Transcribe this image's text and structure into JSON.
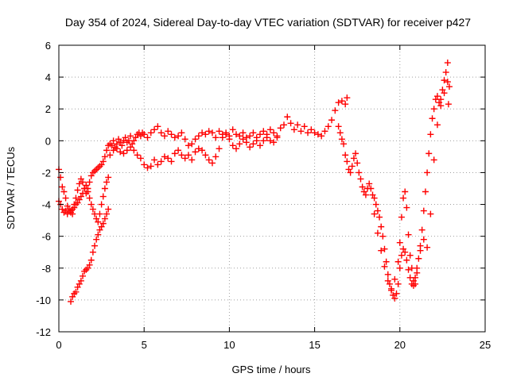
{
  "chart_data": {
    "type": "scatter",
    "title": "Day 354 of 2024, Sidereal Day-to-day VTEC variation (SDTVAR) for receiver p427",
    "xlabel": "GPS time / hours",
    "ylabel": "SDTVAR / TECUs",
    "xlim": [
      0,
      25
    ],
    "ylim": [
      -12,
      6
    ],
    "xticks": [
      0,
      5,
      10,
      15,
      20,
      25
    ],
    "yticks": [
      -12,
      -10,
      -8,
      -6,
      -4,
      -2,
      0,
      2,
      4,
      6
    ],
    "grid": true,
    "legend": "none",
    "marker": "plus",
    "color": "#ff0000",
    "series": [
      {
        "points": [
          [
            0.0,
            -1.8
          ],
          [
            0.1,
            -2.3
          ],
          [
            0.2,
            -2.9
          ],
          [
            0.3,
            -3.2
          ],
          [
            0.4,
            -3.6
          ],
          [
            0.5,
            -4.1
          ],
          [
            0.6,
            -4.4
          ],
          [
            0.7,
            -4.5
          ],
          [
            0.8,
            -4.3
          ],
          [
            0.9,
            -4.0
          ],
          [
            1.0,
            -3.6
          ],
          [
            1.1,
            -3.1
          ],
          [
            1.2,
            -2.7
          ],
          [
            1.3,
            -2.4
          ],
          [
            1.4,
            -2.6
          ],
          [
            1.5,
            -3.0
          ],
          [
            1.6,
            -3.3
          ],
          [
            1.7,
            -3.0
          ],
          [
            1.8,
            -2.6
          ],
          [
            1.9,
            -2.2
          ],
          [
            2.0,
            -2.0
          ],
          [
            2.1,
            -1.9
          ],
          [
            2.2,
            -1.8
          ],
          [
            2.3,
            -1.7
          ],
          [
            2.4,
            -1.6
          ],
          [
            2.5,
            -1.5
          ],
          [
            2.6,
            -1.3
          ],
          [
            2.7,
            -1.0
          ],
          [
            2.8,
            -0.6
          ],
          [
            2.9,
            -0.3
          ],
          [
            3.0,
            -0.2
          ],
          [
            3.1,
            -0.3
          ],
          [
            3.2,
            0.0
          ],
          [
            3.3,
            -0.4
          ],
          [
            3.4,
            -0.2
          ],
          [
            3.5,
            0.1
          ],
          [
            3.6,
            -0.1
          ],
          [
            3.7,
            -0.3
          ],
          [
            3.8,
            0.0
          ],
          [
            3.9,
            0.2
          ],
          [
            4.0,
            -0.1
          ],
          [
            4.1,
            0.0
          ],
          [
            4.2,
            0.3
          ],
          [
            4.3,
            -0.2
          ],
          [
            4.4,
            0.0
          ],
          [
            4.5,
            0.2
          ],
          [
            4.6,
            0.4
          ],
          [
            4.7,
            0.5
          ],
          [
            4.8,
            0.3
          ],
          [
            4.9,
            0.5
          ],
          [
            5.0,
            0.4
          ],
          [
            5.2,
            0.2
          ],
          [
            5.4,
            0.5
          ],
          [
            5.6,
            0.7
          ],
          [
            5.8,
            0.9
          ],
          [
            6.0,
            0.5
          ],
          [
            6.2,
            0.3
          ],
          [
            6.4,
            0.6
          ],
          [
            6.6,
            0.4
          ],
          [
            6.8,
            0.2
          ],
          [
            7.0,
            0.3
          ],
          [
            7.2,
            0.5
          ],
          [
            7.4,
            0.1
          ],
          [
            7.6,
            -0.3
          ],
          [
            7.8,
            -0.2
          ],
          [
            8.0,
            0.1
          ],
          [
            8.2,
            0.3
          ],
          [
            8.4,
            0.5
          ],
          [
            8.6,
            0.4
          ],
          [
            8.8,
            0.6
          ],
          [
            9.0,
            0.5
          ],
          [
            9.2,
            0.2
          ],
          [
            9.4,
            0.6
          ],
          [
            9.6,
            0.4
          ],
          [
            9.8,
            0.5
          ],
          [
            10.0,
            0.3
          ],
          [
            10.2,
            0.7
          ],
          [
            10.4,
            0.4
          ],
          [
            10.6,
            0.3
          ],
          [
            10.8,
            0.5
          ],
          [
            11.0,
            0.2
          ],
          [
            11.2,
            0.3
          ],
          [
            11.4,
            0.5
          ],
          [
            11.6,
            0.2
          ],
          [
            11.8,
            0.4
          ],
          [
            12.0,
            0.6
          ],
          [
            12.2,
            0.4
          ],
          [
            12.4,
            0.7
          ],
          [
            12.6,
            0.5
          ],
          [
            12.8,
            0.3
          ],
          [
            13.0,
            0.8
          ],
          [
            13.2,
            1.0
          ],
          [
            13.4,
            1.5
          ],
          [
            13.6,
            1.1
          ],
          [
            13.8,
            0.7
          ],
          [
            14.0,
            1.0
          ],
          [
            14.2,
            0.6
          ],
          [
            14.4,
            0.9
          ],
          [
            14.6,
            0.5
          ],
          [
            14.8,
            0.7
          ],
          [
            15.0,
            0.5
          ],
          [
            15.2,
            0.4
          ],
          [
            15.4,
            0.3
          ],
          [
            15.6,
            0.6
          ],
          [
            15.8,
            0.9
          ],
          [
            16.0,
            1.3
          ],
          [
            16.2,
            1.9
          ],
          [
            16.4,
            2.4
          ],
          [
            16.6,
            2.5
          ],
          [
            16.8,
            2.3
          ],
          [
            16.9,
            2.7
          ]
        ]
      },
      {
        "points": [
          [
            0.0,
            -3.8
          ],
          [
            0.1,
            -4.0
          ],
          [
            0.2,
            -4.3
          ],
          [
            0.3,
            -4.5
          ],
          [
            0.4,
            -4.4
          ],
          [
            0.5,
            -4.6
          ],
          [
            0.6,
            -4.3
          ],
          [
            0.7,
            -4.4
          ],
          [
            0.8,
            -4.6
          ],
          [
            0.9,
            -4.2
          ],
          [
            1.0,
            -4.0
          ],
          [
            1.1,
            -3.9
          ],
          [
            1.2,
            -3.7
          ],
          [
            1.3,
            -3.5
          ],
          [
            1.4,
            -3.3
          ],
          [
            1.5,
            -3.0
          ],
          [
            1.6,
            -2.8
          ],
          [
            1.7,
            -3.2
          ],
          [
            1.8,
            -3.6
          ],
          [
            1.9,
            -4.0
          ],
          [
            2.0,
            -4.3
          ],
          [
            2.1,
            -4.6
          ],
          [
            2.2,
            -4.9
          ],
          [
            2.3,
            -5.1
          ],
          [
            2.4,
            -4.6
          ],
          [
            2.5,
            -4.0
          ],
          [
            2.6,
            -3.5
          ],
          [
            2.7,
            -3.0
          ],
          [
            2.8,
            -2.6
          ],
          [
            2.9,
            -2.3
          ],
          [
            3.0,
            -0.9
          ],
          [
            3.2,
            -0.6
          ],
          [
            3.4,
            -0.5
          ],
          [
            3.6,
            -0.7
          ],
          [
            3.8,
            -0.8
          ],
          [
            4.0,
            -0.6
          ],
          [
            4.2,
            -0.4
          ],
          [
            4.4,
            -0.6
          ],
          [
            4.6,
            -0.9
          ],
          [
            4.8,
            -1.1
          ],
          [
            5.0,
            -1.5
          ],
          [
            5.2,
            -1.7
          ],
          [
            5.4,
            -1.6
          ],
          [
            5.6,
            -1.2
          ],
          [
            5.8,
            -1.5
          ],
          [
            6.0,
            -1.3
          ],
          [
            6.2,
            -1.0
          ],
          [
            6.4,
            -1.1
          ],
          [
            6.6,
            -1.3
          ],
          [
            6.8,
            -0.8
          ],
          [
            7.0,
            -0.6
          ],
          [
            7.2,
            -0.9
          ],
          [
            7.4,
            -1.1
          ],
          [
            7.6,
            -0.9
          ],
          [
            7.8,
            -1.2
          ],
          [
            8.0,
            -0.7
          ],
          [
            8.2,
            -0.5
          ],
          [
            8.4,
            -0.6
          ],
          [
            8.6,
            -0.9
          ],
          [
            8.8,
            -1.2
          ],
          [
            9.0,
            -1.4
          ],
          [
            9.2,
            -1.0
          ],
          [
            9.4,
            -0.5
          ],
          [
            9.6,
            0.2
          ],
          [
            9.8,
            0.4
          ],
          [
            10.0,
            0.1
          ],
          [
            10.2,
            -0.3
          ],
          [
            10.4,
            -0.5
          ],
          [
            10.6,
            -0.2
          ],
          [
            10.8,
            0.1
          ],
          [
            11.0,
            -0.1
          ],
          [
            11.2,
            -0.4
          ],
          [
            11.4,
            -0.2
          ],
          [
            11.6,
            0.0
          ],
          [
            11.8,
            -0.3
          ],
          [
            12.0,
            0.0
          ],
          [
            12.2,
            0.2
          ],
          [
            12.4,
            0.0
          ],
          [
            12.6,
            -0.1
          ],
          [
            12.8,
            0.2
          ]
        ]
      },
      {
        "points": [
          [
            0.7,
            -10.1
          ],
          [
            0.8,
            -9.8
          ],
          [
            0.9,
            -9.6
          ],
          [
            1.0,
            -9.5
          ],
          [
            1.1,
            -9.2
          ],
          [
            1.2,
            -9.0
          ],
          [
            1.3,
            -8.8
          ],
          [
            1.4,
            -8.5
          ],
          [
            1.5,
            -8.2
          ],
          [
            1.6,
            -8.1
          ],
          [
            1.7,
            -8.0
          ],
          [
            1.8,
            -7.8
          ],
          [
            1.9,
            -7.5
          ],
          [
            2.0,
            -7.0
          ],
          [
            2.1,
            -6.6
          ],
          [
            2.2,
            -6.2
          ],
          [
            2.3,
            -5.9
          ],
          [
            2.4,
            -5.6
          ],
          [
            2.5,
            -5.4
          ],
          [
            2.6,
            -5.2
          ],
          [
            2.7,
            -4.9
          ],
          [
            2.8,
            -4.6
          ],
          [
            2.9,
            -4.3
          ]
        ]
      },
      {
        "points": [
          [
            16.4,
            0.9
          ],
          [
            16.5,
            0.5
          ],
          [
            16.6,
            0.1
          ],
          [
            16.7,
            -0.2
          ],
          [
            16.8,
            -0.9
          ],
          [
            16.9,
            -1.3
          ],
          [
            17.0,
            -1.8
          ],
          [
            17.1,
            -2.0
          ],
          [
            17.2,
            -1.6
          ],
          [
            17.3,
            -1.1
          ],
          [
            17.4,
            -0.8
          ],
          [
            17.5,
            -1.4
          ],
          [
            17.6,
            -2.0
          ],
          [
            17.7,
            -2.4
          ],
          [
            17.8,
            -2.9
          ],
          [
            17.9,
            -3.2
          ],
          [
            18.0,
            -3.4
          ],
          [
            18.1,
            -3.0
          ],
          [
            18.2,
            -2.7
          ],
          [
            18.3,
            -3.0
          ],
          [
            18.4,
            -3.4
          ],
          [
            18.5,
            -3.6
          ],
          [
            18.6,
            -4.0
          ],
          [
            18.7,
            -4.4
          ],
          [
            18.8,
            -4.8
          ],
          [
            18.9,
            -5.4
          ],
          [
            19.0,
            -6.0
          ],
          [
            19.1,
            -6.8
          ],
          [
            19.2,
            -7.6
          ],
          [
            19.3,
            -8.4
          ],
          [
            19.4,
            -9.0
          ],
          [
            19.5,
            -9.4
          ],
          [
            19.6,
            -9.7
          ],
          [
            19.7,
            -9.9
          ],
          [
            19.8,
            -9.6
          ],
          [
            19.9,
            -9.0
          ],
          [
            20.0,
            -8.0
          ],
          [
            20.1,
            -7.2
          ],
          [
            20.2,
            -6.8
          ],
          [
            20.3,
            -7.0
          ],
          [
            20.4,
            -7.5
          ],
          [
            20.5,
            -8.1
          ],
          [
            20.6,
            -8.6
          ],
          [
            20.7,
            -9.0
          ],
          [
            20.8,
            -9.1
          ],
          [
            20.9,
            -8.6
          ],
          [
            21.0,
            -8.0
          ],
          [
            21.1,
            -7.4
          ],
          [
            21.2,
            -6.6
          ],
          [
            21.3,
            -5.6
          ],
          [
            21.4,
            -4.4
          ],
          [
            21.5,
            -3.2
          ],
          [
            21.6,
            -2.0
          ],
          [
            21.7,
            -0.8
          ],
          [
            21.8,
            0.4
          ],
          [
            21.9,
            1.4
          ],
          [
            22.0,
            2.0
          ],
          [
            22.1,
            2.6
          ],
          [
            22.2,
            2.8
          ],
          [
            22.3,
            2.4
          ],
          [
            22.4,
            2.6
          ],
          [
            22.5,
            3.2
          ],
          [
            22.6,
            3.8
          ],
          [
            22.7,
            4.3
          ],
          [
            22.8,
            4.9
          ],
          [
            22.85,
            2.3
          ],
          [
            22.9,
            3.4
          ]
        ]
      },
      {
        "points": [
          [
            18.5,
            -4.6
          ],
          [
            18.7,
            -5.8
          ],
          [
            18.9,
            -6.9
          ],
          [
            19.1,
            -7.9
          ],
          [
            19.3,
            -8.8
          ],
          [
            19.5,
            -9.3
          ],
          [
            19.7,
            -8.7
          ],
          [
            19.9,
            -7.6
          ],
          [
            20.0,
            -6.4
          ],
          [
            20.1,
            -4.8
          ],
          [
            20.2,
            -3.6
          ],
          [
            20.3,
            -3.2
          ],
          [
            20.4,
            -4.2
          ],
          [
            20.5,
            -5.9
          ],
          [
            20.6,
            -7.2
          ],
          [
            20.7,
            -8.0
          ],
          [
            20.8,
            -8.8
          ],
          [
            20.9,
            -9.0
          ],
          [
            21.0,
            -8.3
          ],
          [
            21.2,
            -6.9
          ],
          [
            21.4,
            -6.2
          ],
          [
            21.6,
            -6.7
          ],
          [
            21.8,
            -4.6
          ],
          [
            22.0,
            -1.2
          ],
          [
            22.2,
            1.0
          ],
          [
            22.4,
            2.2
          ],
          [
            22.6,
            3.0
          ],
          [
            22.8,
            3.7
          ]
        ]
      }
    ]
  }
}
